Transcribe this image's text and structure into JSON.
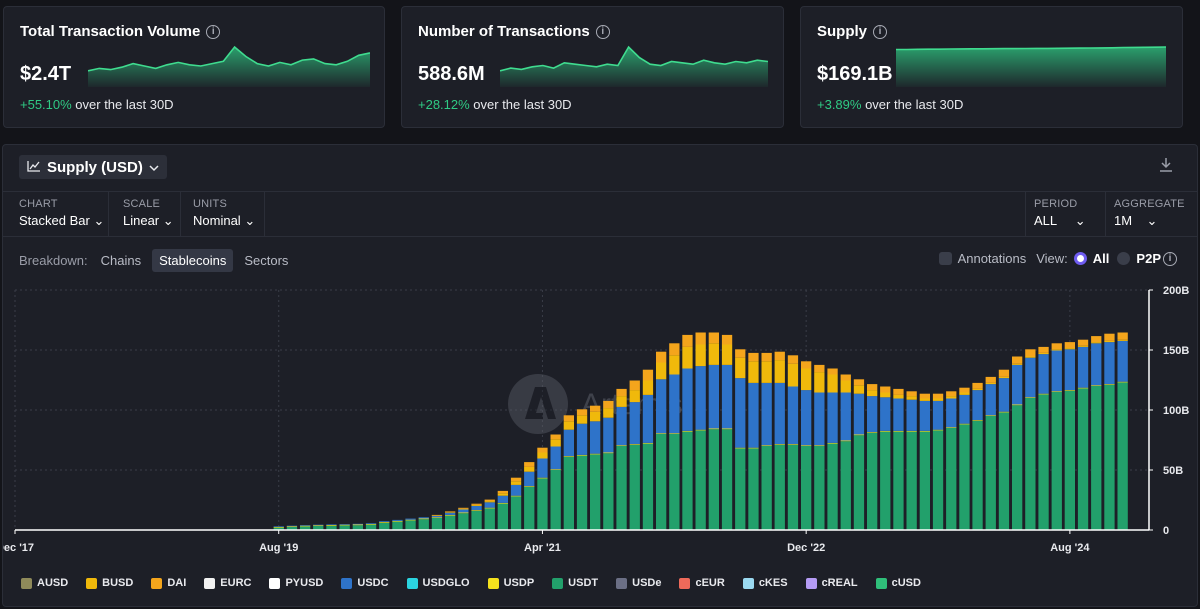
{
  "cards": [
    {
      "title": "Total Transaction Volume",
      "value": "$2.4T",
      "change_pct": "+55.10%",
      "change_text": " over the last 30D"
    },
    {
      "title": "Number of Transactions",
      "value": "588.6M",
      "change_pct": "+28.12%",
      "change_text": " over the last 30D"
    },
    {
      "title": "Supply",
      "value": "$169.1B",
      "change_pct": "+3.89%",
      "change_text": " over the last 30D"
    }
  ],
  "icons": {
    "info": "info-icon",
    "chart": "line-chart-icon",
    "chevron": "chevron-down-icon",
    "download": "download-icon"
  },
  "panel": {
    "metric_label": "Supply (USD)",
    "controls": {
      "chart": {
        "label": "CHART",
        "value": "Stacked Bar"
      },
      "scale": {
        "label": "SCALE",
        "value": "Linear"
      },
      "units": {
        "label": "UNITS",
        "value": "Nominal"
      },
      "period": {
        "label": "PERIOD",
        "value": "ALL"
      },
      "aggregate": {
        "label": "AGGREGATE",
        "value": "1M"
      }
    },
    "breakdown": {
      "label": "Breakdown:",
      "options": [
        "Chains",
        "Stablecoins",
        "Sectors"
      ],
      "active": "Stablecoins"
    },
    "annotations_label": "Annotations",
    "view_label": "View:",
    "view_all": "All",
    "view_p2p": "P2P",
    "watermark": "Artemis"
  },
  "colors": {
    "positive": "#2fca84",
    "accent": "#6f5cf0",
    "usdt": "#22a06b",
    "usdc": "#2e73c9",
    "busd": "#f0b90b"
  },
  "chart_data": {
    "type": "bar",
    "stacked": true,
    "x_ticks": [
      "Dec '17",
      "Aug '19",
      "Apr '21",
      "Dec '22",
      "Aug '24"
    ],
    "y_ticks": [
      "0",
      "50B",
      "100B",
      "150B",
      "200B"
    ],
    "ylim": [
      0,
      200
    ],
    "y_unit": "B",
    "legend": [
      {
        "name": "AUSD",
        "color": "#8f8a5a"
      },
      {
        "name": "BUSD",
        "color": "#f0b90b"
      },
      {
        "name": "DAI",
        "color": "#f4a51c"
      },
      {
        "name": "EURC",
        "color": "#f2f2f2"
      },
      {
        "name": "PYUSD",
        "color": "#ffffff"
      },
      {
        "name": "USDC",
        "color": "#2e73c9"
      },
      {
        "name": "USDGLO",
        "color": "#2bd4e0"
      },
      {
        "name": "USDP",
        "color": "#f5e21d"
      },
      {
        "name": "USDT",
        "color": "#22a06b"
      },
      {
        "name": "USDe",
        "color": "#6b6f85"
      },
      {
        "name": "cEUR",
        "color": "#ef6a5a"
      },
      {
        "name": "cKES",
        "color": "#9ad9f0"
      },
      {
        "name": "cREAL",
        "color": "#b59cf5"
      },
      {
        "name": "cUSD",
        "color": "#2fbf7a"
      }
    ],
    "monthly_stack_order": [
      "USDT",
      "USDP",
      "USDC",
      "BUSD",
      "DAI"
    ],
    "months": [
      {
        "x": "2019-08",
        "usdt": 2,
        "usdc": 0.5,
        "busd": 0,
        "dai": 0
      },
      {
        "x": "2019-09",
        "usdt": 2.5,
        "usdc": 0.5,
        "busd": 0,
        "dai": 0
      },
      {
        "x": "2019-10",
        "usdt": 3,
        "usdc": 0.5,
        "busd": 0,
        "dai": 0
      },
      {
        "x": "2019-11",
        "usdt": 3.3,
        "usdc": 0.5,
        "busd": 0,
        "dai": 0
      },
      {
        "x": "2019-12",
        "usdt": 3.6,
        "usdc": 0.5,
        "busd": 0,
        "dai": 0
      },
      {
        "x": "2020-01",
        "usdt": 3.8,
        "usdc": 0.5,
        "busd": 0,
        "dai": 0
      },
      {
        "x": "2020-02",
        "usdt": 4,
        "usdc": 0.6,
        "busd": 0,
        "dai": 0
      },
      {
        "x": "2020-03",
        "usdt": 4.5,
        "usdc": 0.6,
        "busd": 0,
        "dai": 0
      },
      {
        "x": "2020-04",
        "usdt": 6,
        "usdc": 0.7,
        "busd": 0,
        "dai": 0
      },
      {
        "x": "2020-05",
        "usdt": 7,
        "usdc": 0.8,
        "busd": 0,
        "dai": 0
      },
      {
        "x": "2020-06",
        "usdt": 8,
        "usdc": 0.9,
        "busd": 0,
        "dai": 0
      },
      {
        "x": "2020-07",
        "usdt": 9,
        "usdc": 1,
        "busd": 0,
        "dai": 0
      },
      {
        "x": "2020-08",
        "usdt": 10,
        "usdc": 1.3,
        "busd": 0.3,
        "dai": 0.4
      },
      {
        "x": "2020-09",
        "usdt": 12,
        "usdc": 1.8,
        "busd": 0.5,
        "dai": 0.6
      },
      {
        "x": "2020-10",
        "usdt": 14,
        "usdc": 2.5,
        "busd": 0.6,
        "dai": 0.8
      },
      {
        "x": "2020-11",
        "usdt": 16,
        "usdc": 3.5,
        "busd": 0.8,
        "dai": 1
      },
      {
        "x": "2020-12",
        "usdt": 18,
        "usdc": 4.5,
        "busd": 1,
        "dai": 1.2
      },
      {
        "x": "2021-01",
        "usdt": 22,
        "usdc": 6,
        "busd": 2,
        "dai": 2
      },
      {
        "x": "2021-02",
        "usdt": 28,
        "usdc": 9,
        "busd": 3,
        "dai": 3
      },
      {
        "x": "2021-03",
        "usdt": 36,
        "usdc": 12,
        "busd": 4,
        "dai": 4
      },
      {
        "x": "2021-04",
        "usdt": 43,
        "usdc": 16,
        "busd": 5,
        "dai": 4
      },
      {
        "x": "2021-05",
        "usdt": 50,
        "usdc": 19,
        "busd": 6,
        "dai": 4
      },
      {
        "x": "2021-06",
        "usdt": 61,
        "usdc": 22,
        "busd": 7,
        "dai": 5
      },
      {
        "x": "2021-07",
        "usdt": 62,
        "usdc": 26,
        "busd": 7,
        "dai": 5
      },
      {
        "x": "2021-08",
        "usdt": 63,
        "usdc": 27,
        "busd": 8,
        "dai": 5
      },
      {
        "x": "2021-09",
        "usdt": 64,
        "usdc": 29,
        "busd": 8,
        "dai": 6
      },
      {
        "x": "2021-10",
        "usdt": 70,
        "usdc": 32,
        "busd": 9,
        "dai": 6
      },
      {
        "x": "2021-11",
        "usdt": 71,
        "usdc": 35,
        "busd": 10,
        "dai": 8
      },
      {
        "x": "2021-12",
        "usdt": 72,
        "usdc": 40,
        "busd": 12,
        "dai": 9
      },
      {
        "x": "2022-01",
        "usdt": 80,
        "usdc": 45,
        "busd": 14,
        "dai": 9
      },
      {
        "x": "2022-02",
        "usdt": 80,
        "usdc": 49,
        "busd": 16,
        "dai": 10
      },
      {
        "x": "2022-03",
        "usdt": 82,
        "usdc": 52,
        "busd": 18,
        "dai": 10
      },
      {
        "x": "2022-04",
        "usdt": 83,
        "usdc": 53,
        "busd": 18,
        "dai": 10
      },
      {
        "x": "2022-05",
        "usdt": 84,
        "usdc": 53,
        "busd": 18,
        "dai": 9
      },
      {
        "x": "2022-06",
        "usdt": 84,
        "usdc": 53,
        "busd": 17,
        "dai": 8
      },
      {
        "x": "2022-07",
        "usdt": 68,
        "usdc": 58,
        "busd": 17,
        "dai": 7
      },
      {
        "x": "2022-08",
        "usdt": 68,
        "usdc": 54,
        "busd": 18,
        "dai": 7
      },
      {
        "x": "2022-09",
        "usdt": 70,
        "usdc": 52,
        "busd": 18,
        "dai": 7
      },
      {
        "x": "2022-10",
        "usdt": 71,
        "usdc": 51,
        "busd": 19,
        "dai": 7
      },
      {
        "x": "2022-11",
        "usdt": 71,
        "usdc": 48,
        "busd": 19,
        "dai": 7
      },
      {
        "x": "2022-12",
        "usdt": 70,
        "usdc": 46,
        "busd": 18,
        "dai": 6
      },
      {
        "x": "2023-01",
        "usdt": 70,
        "usdc": 44,
        "busd": 17,
        "dai": 6
      },
      {
        "x": "2023-02",
        "usdt": 72,
        "usdc": 42,
        "busd": 15,
        "dai": 5
      },
      {
        "x": "2023-03",
        "usdt": 74,
        "usdc": 40,
        "busd": 10,
        "dai": 5
      },
      {
        "x": "2023-04",
        "usdt": 79,
        "usdc": 34,
        "busd": 7,
        "dai": 5
      },
      {
        "x": "2023-05",
        "usdt": 81,
        "usdc": 30,
        "busd": 5,
        "dai": 5
      },
      {
        "x": "2023-06",
        "usdt": 82,
        "usdc": 28,
        "busd": 4,
        "dai": 5
      },
      {
        "x": "2023-07",
        "usdt": 82,
        "usdc": 27,
        "busd": 3,
        "dai": 5
      },
      {
        "x": "2023-08",
        "usdt": 82,
        "usdc": 26,
        "busd": 3,
        "dai": 4
      },
      {
        "x": "2023-09",
        "usdt": 82,
        "usdc": 25,
        "busd": 2,
        "dai": 4
      },
      {
        "x": "2023-10",
        "usdt": 83,
        "usdc": 24,
        "busd": 2,
        "dai": 4
      },
      {
        "x": "2023-11",
        "usdt": 85,
        "usdc": 24,
        "busd": 2,
        "dai": 4
      },
      {
        "x": "2023-12",
        "usdt": 88,
        "usdc": 24,
        "busd": 2,
        "dai": 4
      },
      {
        "x": "2024-01",
        "usdt": 91,
        "usdc": 25,
        "busd": 1,
        "dai": 5
      },
      {
        "x": "2024-02",
        "usdt": 95,
        "usdc": 26,
        "busd": 1,
        "dai": 5
      },
      {
        "x": "2024-03",
        "usdt": 98,
        "usdc": 28,
        "busd": 1,
        "dai": 6
      },
      {
        "x": "2024-04",
        "usdt": 104,
        "usdc": 33,
        "busd": 1,
        "dai": 6
      },
      {
        "x": "2024-05",
        "usdt": 110,
        "usdc": 33,
        "busd": 1,
        "dai": 6
      },
      {
        "x": "2024-06",
        "usdt": 113,
        "usdc": 33,
        "busd": 1,
        "dai": 5
      },
      {
        "x": "2024-07",
        "usdt": 115,
        "usdc": 34,
        "busd": 1,
        "dai": 5
      },
      {
        "x": "2024-08",
        "usdt": 116,
        "usdc": 34,
        "busd": 1,
        "dai": 5
      },
      {
        "x": "2024-09",
        "usdt": 118,
        "usdc": 34,
        "busd": 1,
        "dai": 5
      },
      {
        "x": "2024-10",
        "usdt": 120,
        "usdc": 35,
        "busd": 1,
        "dai": 5
      },
      {
        "x": "2024-11",
        "usdt": 121,
        "usdc": 35,
        "busd": 1,
        "dai": 6
      },
      {
        "x": "2024-12",
        "usdt": 123,
        "usdc": 34,
        "busd": 1,
        "dai": 6
      }
    ],
    "x_range": [
      "2017-12",
      "2025-02"
    ]
  },
  "sparklines": [
    {
      "values": [
        20,
        22,
        21,
        23,
        26,
        24,
        22,
        25,
        27,
        25,
        24,
        26,
        28,
        40,
        32,
        26,
        24,
        27,
        25,
        29,
        30,
        26,
        25,
        28,
        33,
        35
      ]
    },
    {
      "values": [
        20,
        22,
        21,
        23,
        24,
        22,
        26,
        25,
        24,
        23,
        25,
        24,
        38,
        30,
        25,
        24,
        27,
        26,
        25,
        28,
        26,
        25,
        27,
        26,
        28,
        27
      ]
    },
    {
      "values": [
        33,
        33,
        33.2,
        33.3,
        33.3,
        33.4,
        33.5,
        33.6,
        33.6,
        33.7,
        33.8,
        33.8,
        33.9,
        34,
        34,
        34.1,
        34.2,
        34.3,
        34.4,
        34.5,
        34.6,
        34.8,
        34.9,
        35,
        35.1,
        35.3
      ]
    }
  ]
}
